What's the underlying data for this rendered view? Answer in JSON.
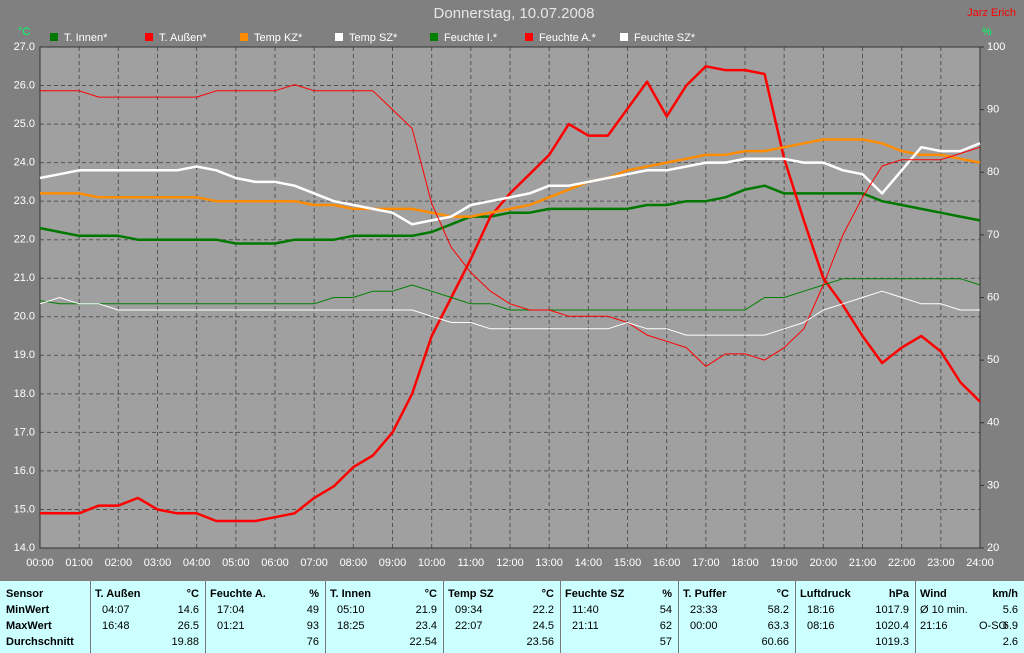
{
  "chart_data": {
    "type": "line",
    "title": "Donnerstag, 10.07.2008",
    "author": "Jarz Erich",
    "ylabel": "°C",
    "y2label": "%",
    "x": [
      0,
      0.5,
      1,
      1.5,
      2,
      2.5,
      3,
      3.5,
      4,
      4.5,
      5,
      5.5,
      6,
      6.5,
      7,
      7.5,
      8,
      8.5,
      9,
      9.5,
      10,
      10.5,
      11,
      11.5,
      12,
      12.5,
      13,
      13.5,
      14,
      14.5,
      15,
      15.5,
      16,
      16.5,
      17,
      17.5,
      18,
      18.5,
      19,
      19.5,
      20,
      20.5,
      21,
      21.5,
      22,
      22.5,
      23,
      23.5,
      24
    ],
    "xlim": [
      0,
      24
    ],
    "xticks": [
      {
        "value": 0,
        "label": "00:00"
      },
      {
        "value": 1,
        "label": "01:00"
      },
      {
        "value": 2,
        "label": "02:00"
      },
      {
        "value": 3,
        "label": "03:00"
      },
      {
        "value": 4,
        "label": "04:00"
      },
      {
        "value": 5,
        "label": "05:00"
      },
      {
        "value": 6,
        "label": "06:00"
      },
      {
        "value": 7,
        "label": "07:00"
      },
      {
        "value": 8,
        "label": "08:00"
      },
      {
        "value": 9,
        "label": "09:00"
      },
      {
        "value": 10,
        "label": "10:00"
      },
      {
        "value": 11,
        "label": "11:00"
      },
      {
        "value": 12,
        "label": "12:00"
      },
      {
        "value": 13,
        "label": "13:00"
      },
      {
        "value": 14,
        "label": "14:00"
      },
      {
        "value": 15,
        "label": "15:00"
      },
      {
        "value": 16,
        "label": "16:00"
      },
      {
        "value": 17,
        "label": "17:00"
      },
      {
        "value": 18,
        "label": "18:00"
      },
      {
        "value": 19,
        "label": "19:00"
      },
      {
        "value": 20,
        "label": "20:00"
      },
      {
        "value": 21,
        "label": "21:00"
      },
      {
        "value": 22,
        "label": "22:00"
      },
      {
        "value": 23,
        "label": "23:00"
      },
      {
        "value": 24,
        "label": "24:00"
      }
    ],
    "ylim": [
      14,
      27
    ],
    "yticks": [
      {
        "value": 14,
        "label": "14.0"
      },
      {
        "value": 15,
        "label": "15.0"
      },
      {
        "value": 16,
        "label": "16.0"
      },
      {
        "value": 17,
        "label": "17.0"
      },
      {
        "value": 18,
        "label": "18.0"
      },
      {
        "value": 19,
        "label": "19.0"
      },
      {
        "value": 20,
        "label": "20.0"
      },
      {
        "value": 21,
        "label": "21.0"
      },
      {
        "value": 22,
        "label": "22.0"
      },
      {
        "value": 23,
        "label": "23.0"
      },
      {
        "value": 24,
        "label": "24.0"
      },
      {
        "value": 25,
        "label": "25.0"
      },
      {
        "value": 26,
        "label": "26.0"
      },
      {
        "value": 27,
        "label": "27.0"
      }
    ],
    "y2lim": [
      20,
      100
    ],
    "y2ticks": [
      20,
      30,
      40,
      50,
      60,
      70,
      80,
      90,
      100
    ],
    "grid": true,
    "series": [
      {
        "name": "T. Innen*",
        "color": "#007800",
        "values": [
          22.3,
          22.2,
          22.1,
          22.1,
          22.1,
          22.0,
          22.0,
          22.0,
          22.0,
          22.0,
          21.9,
          21.9,
          21.9,
          22.0,
          22.0,
          22.0,
          22.1,
          22.1,
          22.1,
          22.1,
          22.2,
          22.4,
          22.6,
          22.6,
          22.7,
          22.7,
          22.8,
          22.8,
          22.8,
          22.8,
          22.8,
          22.9,
          22.9,
          23.0,
          23.0,
          23.1,
          23.3,
          23.4,
          23.2,
          23.2,
          23.2,
          23.2,
          23.2,
          23.0,
          22.9,
          22.8,
          22.7,
          22.6,
          22.5
        ]
      },
      {
        "name": "T. Außen*",
        "color": "#ff0000",
        "values": [
          14.9,
          14.9,
          14.9,
          15.1,
          15.1,
          15.3,
          15.0,
          14.9,
          14.9,
          14.7,
          14.7,
          14.7,
          14.8,
          14.9,
          15.3,
          15.6,
          16.1,
          16.4,
          17.0,
          18.0,
          19.5,
          20.5,
          21.5,
          22.6,
          23.2,
          23.7,
          24.2,
          25.0,
          24.7,
          24.7,
          25.4,
          26.1,
          25.2,
          26.0,
          26.5,
          26.4,
          26.4,
          26.3,
          24.1,
          22.5,
          21.0,
          20.3,
          19.5,
          18.8,
          19.2,
          19.5,
          19.1,
          18.3,
          17.8
        ]
      },
      {
        "name": "Temp KZ*",
        "color": "#ff8c00",
        "values": [
          23.2,
          23.2,
          23.2,
          23.1,
          23.1,
          23.1,
          23.1,
          23.1,
          23.1,
          23.0,
          23.0,
          23.0,
          23.0,
          23.0,
          22.9,
          22.9,
          22.8,
          22.8,
          22.8,
          22.8,
          22.7,
          22.6,
          22.6,
          22.7,
          22.8,
          22.9,
          23.1,
          23.3,
          23.5,
          23.6,
          23.8,
          23.9,
          24.0,
          24.1,
          24.2,
          24.2,
          24.3,
          24.3,
          24.4,
          24.5,
          24.6,
          24.6,
          24.6,
          24.5,
          24.3,
          24.2,
          24.2,
          24.1,
          24.0
        ]
      },
      {
        "name": "Temp SZ*",
        "color": "#ffffff",
        "values": [
          23.6,
          23.7,
          23.8,
          23.8,
          23.8,
          23.8,
          23.8,
          23.8,
          23.9,
          23.8,
          23.6,
          23.5,
          23.5,
          23.4,
          23.2,
          23.0,
          22.9,
          22.8,
          22.7,
          22.4,
          22.5,
          22.6,
          22.9,
          23.0,
          23.1,
          23.2,
          23.4,
          23.4,
          23.5,
          23.6,
          23.7,
          23.8,
          23.8,
          23.9,
          24.0,
          24.0,
          24.1,
          24.1,
          24.1,
          24.0,
          24.0,
          23.8,
          23.7,
          23.2,
          23.8,
          24.4,
          24.3,
          24.3,
          24.5
        ]
      },
      {
        "name": "Feuchte I.*",
        "color": "#008000",
        "axis": "y2",
        "values": [
          59.5,
          59,
          59,
          59,
          59,
          59,
          59,
          59,
          59,
          59,
          59,
          59,
          59,
          59,
          59,
          60,
          60,
          61,
          61,
          62,
          61,
          60,
          59,
          59,
          58,
          58,
          58,
          58,
          58,
          58,
          58,
          58,
          58,
          58,
          58,
          58,
          58,
          60,
          60,
          61,
          62,
          63,
          63,
          63,
          63,
          63,
          63,
          63,
          62
        ]
      },
      {
        "name": "Feuchte A.*",
        "color": "#ff0000",
        "axis": "y2",
        "values": [
          93,
          93,
          93,
          92,
          92,
          92,
          92,
          92,
          92,
          93,
          93,
          93,
          93,
          94,
          93,
          93,
          93,
          93,
          90,
          87,
          75,
          68,
          64,
          61,
          59,
          58,
          58,
          57,
          57,
          57,
          56,
          54,
          53,
          52,
          49,
          51,
          51,
          50,
          52,
          55,
          62,
          70,
          76,
          81,
          82,
          82,
          82,
          83,
          84
        ]
      },
      {
        "name": "Feuchte SZ*",
        "color": "#ffffff",
        "axis": "y2",
        "values": [
          59,
          60,
          59,
          59,
          58,
          58,
          58,
          58,
          58,
          58,
          58,
          58,
          58,
          58,
          58,
          58,
          58,
          58,
          58,
          58,
          57,
          56,
          56,
          55,
          55,
          55,
          55,
          55,
          55,
          55,
          56,
          55,
          55,
          54,
          54,
          54,
          54,
          54,
          55,
          56,
          58,
          59,
          60,
          61,
          60,
          59,
          59,
          58,
          58
        ]
      }
    ]
  },
  "stats": {
    "header": "Sensor",
    "rows": [
      "MinWert",
      "MaxWert",
      "Durchschnitt"
    ],
    "groups": [
      {
        "name": "T. Außen",
        "unit": "°C",
        "cells": [
          [
            "04:07",
            14.6
          ],
          [
            "16:48",
            26.5
          ],
          [
            19.88
          ]
        ]
      },
      {
        "name": "Feuchte A.",
        "unit": "%",
        "cells": [
          [
            "17:04",
            49
          ],
          [
            "01:21",
            93
          ],
          [
            76
          ]
        ]
      },
      {
        "name": "T. Innen",
        "unit": "°C",
        "cells": [
          [
            "05:10",
            21.9
          ],
          [
            "18:25",
            23.4
          ],
          [
            22.54
          ]
        ]
      },
      {
        "name": "Temp SZ",
        "unit": "°C",
        "cells": [
          [
            "09:34",
            22.2
          ],
          [
            "22:07",
            24.5
          ],
          [
            23.56
          ]
        ]
      },
      {
        "name": "Feuchte SZ",
        "unit": "%",
        "cells": [
          [
            "11:40",
            54
          ],
          [
            "21:11",
            62
          ],
          [
            57
          ]
        ]
      },
      {
        "name": "T. Puffer",
        "unit": "°C",
        "cells": [
          [
            "23:33",
            58.2
          ],
          [
            "00:00",
            63.3
          ],
          [
            60.66
          ]
        ]
      },
      {
        "name": "Luftdruck",
        "unit": "hPa",
        "cells": [
          [
            "18:16",
            1017.9
          ],
          [
            "08:16",
            1020.4
          ],
          [
            1019.3
          ]
        ]
      },
      {
        "name": "Wind",
        "unit": "km/h",
        "cells": [
          [
            "Ø 10 min.",
            5.6
          ],
          [
            "21:16",
            "O-SO",
            6.9
          ],
          [
            2.6
          ]
        ]
      }
    ]
  }
}
